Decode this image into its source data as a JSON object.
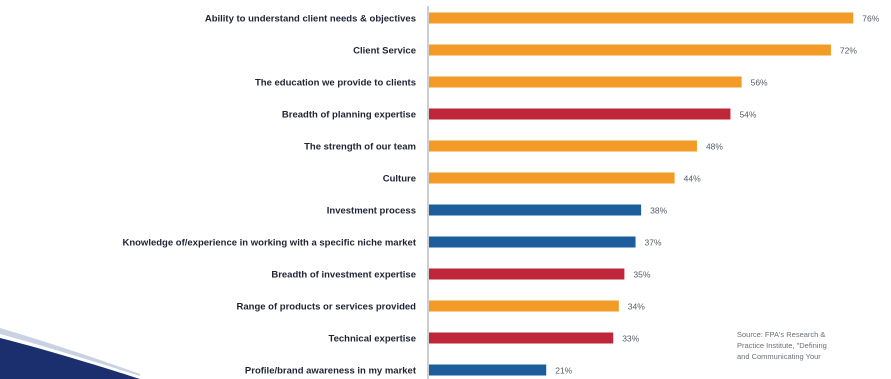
{
  "chart_data": {
    "type": "bar",
    "orientation": "horizontal",
    "categories": [
      "Ability to understand client needs & objectives",
      "Client Service",
      "The education we provide to clients",
      "Breadth of planning expertise",
      "The strength of our team",
      "Culture",
      "Investment process",
      "Knowledge of/experience in working with a specific niche market",
      "Breadth of investment expertise",
      "Range of products or services provided",
      "Technical expertise",
      "Profile/brand awareness in my market"
    ],
    "values": [
      76,
      72,
      56,
      54,
      48,
      44,
      38,
      37,
      35,
      34,
      33,
      21
    ],
    "value_labels": [
      "76%",
      "72%",
      "56%",
      "54%",
      "48%",
      "44%",
      "38%",
      "37%",
      "35%",
      "34%",
      "33%",
      "21%"
    ],
    "bar_colors": [
      "#f29b26",
      "#f29b26",
      "#f29b26",
      "#c0263a",
      "#f29b26",
      "#f29b26",
      "#1d5d9b",
      "#1d5d9b",
      "#c0263a",
      "#f29b26",
      "#c0263a",
      "#1d5d9b"
    ],
    "xlim": [
      0,
      79
    ],
    "grid": false,
    "legend": "none"
  },
  "source_note": {
    "lines": [
      "Source: FPA's Research &",
      "Practice Institute, \"Defining",
      "and Communicating Your"
    ]
  },
  "colors": {
    "orange": "#f29b26",
    "red": "#c0263a",
    "blue": "#1d5d9b",
    "axis": "#9a9ea6"
  }
}
